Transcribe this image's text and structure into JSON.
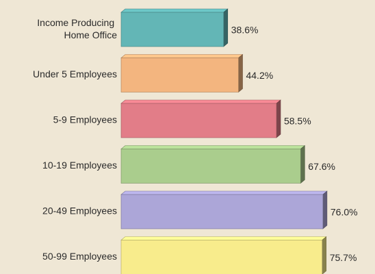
{
  "chart_data": {
    "type": "bar",
    "orientation": "horizontal",
    "categories": [
      "Income Producing Home Office",
      "Under 5 Employees",
      "5-9 Employees",
      "10-19 Employees",
      "20-49 Employees",
      "50-99 Employees"
    ],
    "values": [
      38.6,
      44.2,
      58.5,
      67.6,
      76.0,
      75.7
    ],
    "value_labels": [
      "38.6%",
      "44.2%",
      "58.5%",
      "67.6%",
      "76.0%",
      "75.7%"
    ],
    "colors": [
      "#63b6b6",
      "#f3b57f",
      "#e27d88",
      "#aacd8d",
      "#aca6d8",
      "#f8ec8c"
    ]
  }
}
